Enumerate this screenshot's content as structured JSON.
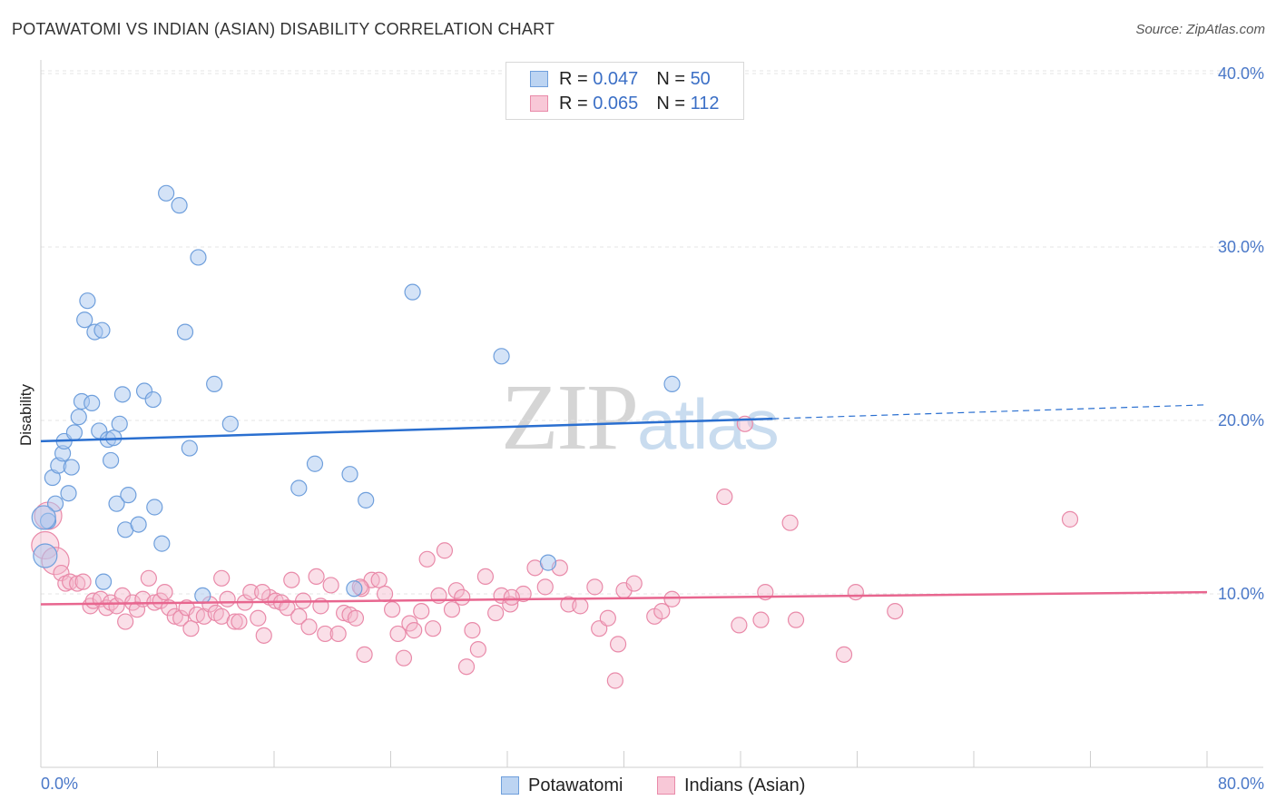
{
  "title": "POTAWATOMI VS INDIAN (ASIAN) DISABILITY CORRELATION CHART",
  "source": "Source: ZipAtlas.com",
  "watermark": {
    "zip": "ZIP",
    "atlas": "atlas"
  },
  "legend": {
    "r_label": "R =",
    "n_label": "N =",
    "rows": [
      {
        "r": "0.047",
        "n": "50"
      },
      {
        "r": "0.065",
        "n": "112"
      }
    ]
  },
  "colors": {
    "blue_fill": "#a9c8ef",
    "blue_stroke": "#6f9fdc",
    "blue_line": "#2a6fd0",
    "pink_fill": "#f4b8cb",
    "pink_stroke": "#e98aa9",
    "pink_line": "#e8668f",
    "grid": "#e4e4e4",
    "axis_text": "#4a78c8"
  },
  "chart_data": {
    "type": "scatter",
    "title": "POTAWATOMI VS INDIAN (ASIAN) DISABILITY CORRELATION CHART",
    "xlabel": "",
    "ylabel": "Disability",
    "xlim": [
      0,
      80
    ],
    "ylim": [
      0,
      41
    ],
    "x_tick_labels": [
      "0.0%",
      "80.0%"
    ],
    "y_ticks": [
      10,
      20,
      30,
      40
    ],
    "y_tick_labels": [
      "10.0%",
      "20.0%",
      "30.0%",
      "40.0%"
    ],
    "grid": true,
    "series": [
      {
        "name": "Potawatomi",
        "r": 0.047,
        "n": 50,
        "trend": {
          "x0": 0,
          "y0": 18.8,
          "x1": 50.2,
          "y1": 20.1,
          "dash_to_x": 80,
          "dash_to_y": 20.9
        },
        "points": [
          [
            0.3,
            12.2
          ],
          [
            0.5,
            14.2
          ],
          [
            0.8,
            16.7
          ],
          [
            1.0,
            15.2
          ],
          [
            1.2,
            17.4
          ],
          [
            1.5,
            18.1
          ],
          [
            1.6,
            18.8
          ],
          [
            1.9,
            15.8
          ],
          [
            2.1,
            17.3
          ],
          [
            2.3,
            19.3
          ],
          [
            2.6,
            20.2
          ],
          [
            2.8,
            21.1
          ],
          [
            3.0,
            25.8
          ],
          [
            3.2,
            26.9
          ],
          [
            3.5,
            21.0
          ],
          [
            3.7,
            25.1
          ],
          [
            4.0,
            19.4
          ],
          [
            4.2,
            25.2
          ],
          [
            4.3,
            10.7
          ],
          [
            4.6,
            18.9
          ],
          [
            4.8,
            17.7
          ],
          [
            5.0,
            19.0
          ],
          [
            5.2,
            15.2
          ],
          [
            5.4,
            19.8
          ],
          [
            5.6,
            21.5
          ],
          [
            5.8,
            13.7
          ],
          [
            6.0,
            15.7
          ],
          [
            6.7,
            14.0
          ],
          [
            7.1,
            21.7
          ],
          [
            7.7,
            21.2
          ],
          [
            7.8,
            15.0
          ],
          [
            8.3,
            12.9
          ],
          [
            8.6,
            33.1
          ],
          [
            9.5,
            32.4
          ],
          [
            9.9,
            25.1
          ],
          [
            10.2,
            18.4
          ],
          [
            10.8,
            29.4
          ],
          [
            11.1,
            9.9
          ],
          [
            11.9,
            22.1
          ],
          [
            13.0,
            19.8
          ],
          [
            17.7,
            16.1
          ],
          [
            18.8,
            17.5
          ],
          [
            21.2,
            16.9
          ],
          [
            21.5,
            10.3
          ],
          [
            22.3,
            15.4
          ],
          [
            25.5,
            27.4
          ],
          [
            31.6,
            23.7
          ],
          [
            34.8,
            11.8
          ],
          [
            43.3,
            22.1
          ],
          [
            0.2,
            14.4
          ]
        ]
      },
      {
        "name": "Indians (Asian)",
        "r": 0.065,
        "n": 112,
        "trend": {
          "x0": 0,
          "y0": 9.4,
          "x1": 80,
          "y1": 10.1
        },
        "points": [
          [
            0.3,
            12.8
          ],
          [
            0.5,
            14.5
          ],
          [
            1.0,
            11.9
          ],
          [
            1.4,
            11.2
          ],
          [
            1.7,
            10.6
          ],
          [
            2.0,
            10.7
          ],
          [
            2.5,
            10.6
          ],
          [
            2.9,
            10.7
          ],
          [
            3.4,
            9.3
          ],
          [
            3.6,
            9.6
          ],
          [
            4.1,
            9.7
          ],
          [
            4.5,
            9.2
          ],
          [
            4.8,
            9.5
          ],
          [
            5.2,
            9.3
          ],
          [
            5.6,
            9.9
          ],
          [
            5.8,
            8.4
          ],
          [
            6.3,
            9.5
          ],
          [
            6.6,
            9.1
          ],
          [
            7.0,
            9.7
          ],
          [
            7.4,
            10.9
          ],
          [
            7.8,
            9.5
          ],
          [
            8.2,
            9.6
          ],
          [
            8.5,
            10.1
          ],
          [
            8.8,
            9.2
          ],
          [
            9.2,
            8.7
          ],
          [
            9.6,
            8.6
          ],
          [
            10.0,
            9.2
          ],
          [
            10.3,
            8.0
          ],
          [
            10.7,
            8.8
          ],
          [
            11.2,
            8.7
          ],
          [
            11.6,
            9.4
          ],
          [
            12.0,
            8.9
          ],
          [
            12.4,
            8.7
          ],
          [
            12.4,
            10.9
          ],
          [
            12.8,
            9.7
          ],
          [
            13.3,
            8.4
          ],
          [
            13.6,
            8.4
          ],
          [
            14.0,
            9.5
          ],
          [
            14.4,
            10.1
          ],
          [
            14.9,
            8.6
          ],
          [
            15.3,
            7.6
          ],
          [
            15.7,
            9.8
          ],
          [
            16.1,
            9.6
          ],
          [
            16.5,
            9.5
          ],
          [
            16.9,
            9.2
          ],
          [
            17.2,
            10.8
          ],
          [
            17.7,
            8.7
          ],
          [
            18.0,
            9.6
          ],
          [
            18.4,
            8.1
          ],
          [
            18.9,
            11.0
          ],
          [
            19.2,
            9.3
          ],
          [
            19.5,
            7.7
          ],
          [
            19.9,
            10.5
          ],
          [
            20.4,
            7.7
          ],
          [
            20.8,
            8.9
          ],
          [
            21.2,
            8.8
          ],
          [
            21.6,
            8.6
          ],
          [
            22.0,
            10.3
          ],
          [
            22.2,
            6.5
          ],
          [
            22.7,
            10.8
          ],
          [
            23.2,
            10.8
          ],
          [
            23.6,
            10.0
          ],
          [
            24.1,
            9.1
          ],
          [
            24.5,
            7.7
          ],
          [
            24.9,
            6.3
          ],
          [
            25.3,
            8.3
          ],
          [
            25.6,
            7.9
          ],
          [
            26.1,
            9.0
          ],
          [
            26.5,
            12.0
          ],
          [
            26.9,
            8.0
          ],
          [
            27.3,
            9.9
          ],
          [
            27.7,
            12.5
          ],
          [
            28.2,
            9.1
          ],
          [
            28.5,
            10.2
          ],
          [
            28.9,
            9.8
          ],
          [
            29.2,
            5.8
          ],
          [
            29.6,
            7.9
          ],
          [
            30.0,
            6.8
          ],
          [
            30.5,
            11.0
          ],
          [
            31.2,
            8.9
          ],
          [
            31.6,
            9.9
          ],
          [
            32.2,
            9.4
          ],
          [
            33.1,
            10.0
          ],
          [
            33.9,
            11.5
          ],
          [
            34.6,
            10.4
          ],
          [
            35.6,
            11.5
          ],
          [
            36.2,
            9.4
          ],
          [
            37.0,
            9.3
          ],
          [
            38.0,
            10.4
          ],
          [
            38.3,
            8.0
          ],
          [
            38.9,
            8.6
          ],
          [
            39.6,
            7.1
          ],
          [
            40.0,
            10.2
          ],
          [
            40.7,
            10.6
          ],
          [
            42.1,
            8.7
          ],
          [
            42.6,
            9.0
          ],
          [
            43.3,
            9.7
          ],
          [
            46.9,
            15.6
          ],
          [
            47.9,
            8.2
          ],
          [
            48.3,
            19.8
          ],
          [
            49.4,
            8.5
          ],
          [
            49.7,
            10.1
          ],
          [
            51.4,
            14.1
          ],
          [
            51.8,
            8.5
          ],
          [
            55.1,
            6.5
          ],
          [
            55.9,
            10.1
          ],
          [
            58.6,
            9.0
          ],
          [
            70.6,
            14.3
          ],
          [
            39.4,
            5.0
          ],
          [
            15.2,
            10.1
          ],
          [
            21.9,
            10.4
          ],
          [
            32.3,
            9.8
          ]
        ]
      }
    ]
  }
}
